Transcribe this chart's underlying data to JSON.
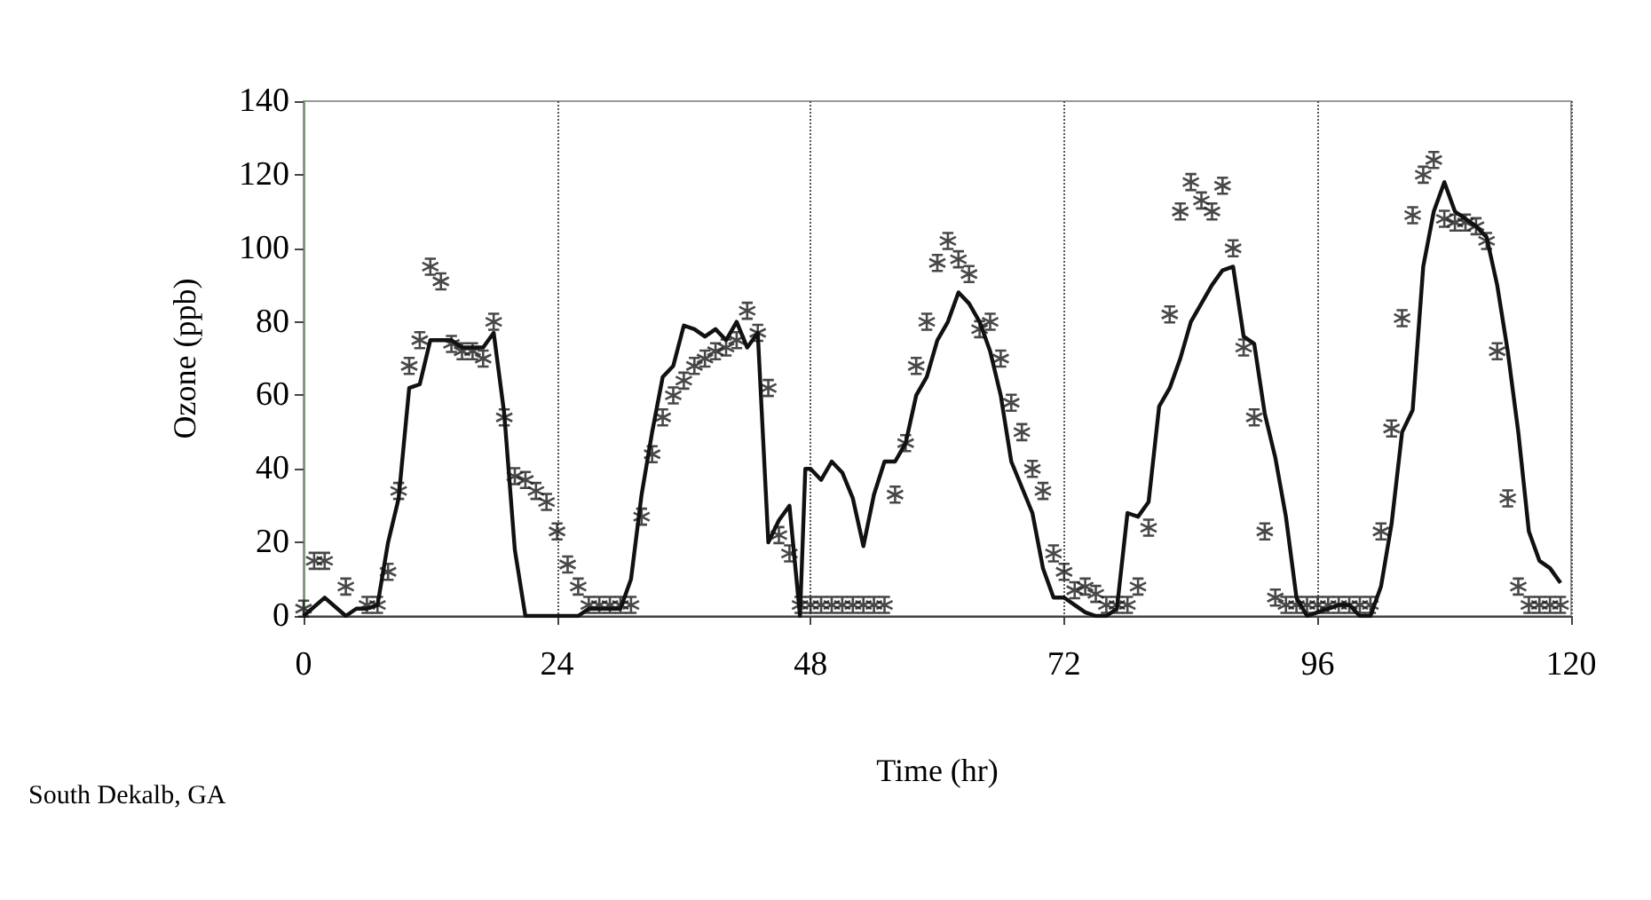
{
  "chart_data": {
    "type": "line",
    "xlabel": "Time (hr)",
    "ylabel": "Ozone (ppb)",
    "annotations": [
      "South Dekalb, GA"
    ],
    "xlim": [
      0,
      120
    ],
    "xticks": [
      0,
      24,
      48,
      72,
      96,
      120
    ],
    "ylim": [
      0,
      140
    ],
    "yticks": [
      0,
      20,
      40,
      60,
      80,
      100,
      120,
      140
    ],
    "grid": "x",
    "series": [
      {
        "type": "scatter",
        "marker": "cross",
        "color": "#1a1a1a",
        "x": [
          0,
          1,
          2,
          4,
          6,
          7,
          8,
          9,
          10,
          11,
          12,
          13,
          14,
          15,
          16,
          17,
          18,
          19,
          20,
          21,
          22,
          23,
          24,
          25,
          26,
          27,
          28,
          29,
          30,
          31,
          32,
          33,
          34,
          35,
          36,
          37,
          38,
          39,
          40,
          41,
          42,
          43,
          44,
          45,
          46,
          47,
          48,
          49,
          50,
          51,
          52,
          53,
          54,
          55,
          56,
          57,
          58,
          59,
          60,
          61,
          62,
          63,
          64,
          65,
          66,
          67,
          68,
          69,
          70,
          71,
          72,
          73,
          74,
          75,
          76,
          77,
          78,
          79,
          80,
          82,
          83,
          84,
          85,
          86,
          87,
          88,
          89,
          90,
          91,
          92,
          93,
          94,
          95,
          96,
          97,
          98,
          99,
          100,
          101,
          102,
          103,
          104,
          105,
          106,
          107,
          108,
          109,
          110,
          111,
          112,
          113,
          114,
          115,
          116,
          117,
          118,
          119
        ],
        "values": [
          2,
          15,
          15,
          8,
          3,
          3,
          12,
          34,
          68,
          75,
          95,
          91,
          74,
          72,
          72,
          70,
          80,
          54,
          38,
          37,
          34,
          31,
          23,
          14,
          8,
          3,
          3,
          3,
          3,
          3,
          27,
          44,
          54,
          60,
          64,
          68,
          70,
          72,
          73,
          75,
          83,
          77,
          62,
          22,
          17,
          3,
          3,
          3,
          3,
          3,
          3,
          3,
          3,
          3,
          33,
          47,
          68,
          80,
          96,
          102,
          97,
          93,
          78,
          80,
          70,
          58,
          50,
          40,
          34,
          17,
          12,
          7,
          8,
          6,
          3,
          3,
          3,
          8,
          24,
          82,
          110,
          118,
          113,
          110,
          117,
          100,
          73,
          54,
          23,
          5,
          3,
          3,
          3,
          3,
          3,
          3,
          3,
          3,
          3,
          23,
          51,
          81,
          109,
          120,
          124,
          108,
          107,
          107,
          106,
          102,
          72,
          32,
          8,
          3,
          3,
          3,
          3
        ]
      },
      {
        "marker": "none",
        "color": "#111111",
        "x": [
          0,
          2,
          4,
          5,
          6,
          7,
          8,
          9,
          10,
          11,
          12,
          13,
          14,
          15,
          16,
          17,
          18,
          19,
          20,
          21,
          22,
          24,
          26,
          27,
          30,
          31,
          32,
          33,
          34,
          35,
          36,
          37,
          38,
          39,
          40,
          41,
          42,
          43,
          44,
          45,
          46,
          47,
          47.5,
          48,
          49,
          50,
          51,
          52,
          53,
          54,
          55,
          56,
          57,
          58,
          59,
          60,
          61,
          62,
          63,
          64,
          65,
          66,
          67,
          68,
          69,
          70,
          71,
          72,
          73,
          74,
          75,
          76,
          77,
          78,
          79,
          80,
          81,
          82,
          83,
          84,
          85,
          86,
          87,
          88,
          89,
          90,
          91,
          92,
          93,
          94,
          95,
          96,
          98,
          99,
          100,
          101,
          102,
          103,
          104,
          105,
          106,
          107,
          108,
          109,
          110,
          111,
          112,
          113,
          114,
          115,
          116,
          117,
          118,
          119
        ],
        "values": [
          0,
          5,
          0,
          2,
          2,
          3,
          20,
          32,
          62,
          63,
          75,
          75,
          75,
          73,
          73,
          73,
          77,
          55,
          18,
          0,
          0,
          0,
          0,
          2,
          2,
          10,
          33,
          50,
          65,
          68,
          79,
          78,
          76,
          78,
          75,
          80,
          73,
          77,
          20,
          26,
          30,
          0,
          40,
          40,
          37,
          42,
          39,
          32,
          19,
          33,
          42,
          42,
          47,
          60,
          65,
          75,
          80,
          88,
          85,
          80,
          72,
          60,
          42,
          35,
          28,
          13,
          5,
          5,
          3,
          1,
          0,
          0,
          2,
          28,
          27,
          31,
          57,
          62,
          70,
          80,
          85,
          90,
          94,
          95,
          76,
          74,
          55,
          43,
          27,
          5,
          0,
          1,
          3,
          3,
          0,
          0,
          8,
          25,
          50,
          56,
          95,
          110,
          118,
          110,
          108,
          106,
          103,
          90,
          72,
          50,
          23,
          15,
          13,
          9
        ]
      }
    ]
  }
}
